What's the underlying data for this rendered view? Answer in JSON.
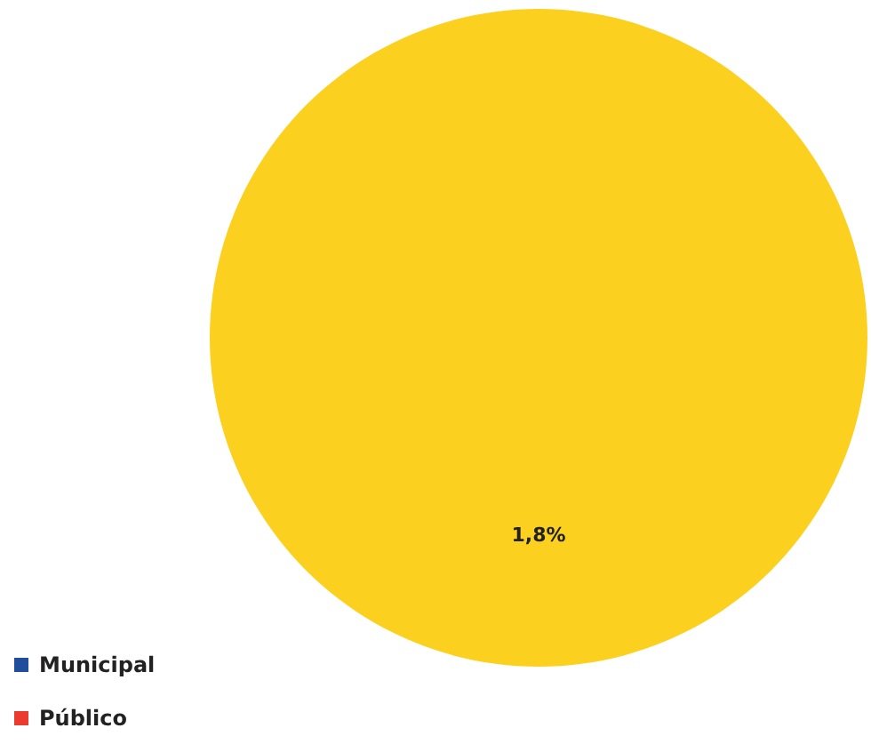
{
  "chart_data": {
    "type": "pie",
    "categories": [
      "Municipal",
      "Público",
      null
    ],
    "values": [
      0,
      0,
      1.8
    ],
    "colors": [
      "#1f4f9c",
      "#ea3b2e",
      "#fcd01e"
    ],
    "value_labels": [
      null,
      null,
      "1,8%"
    ],
    "legend": "bottom left"
  }
}
